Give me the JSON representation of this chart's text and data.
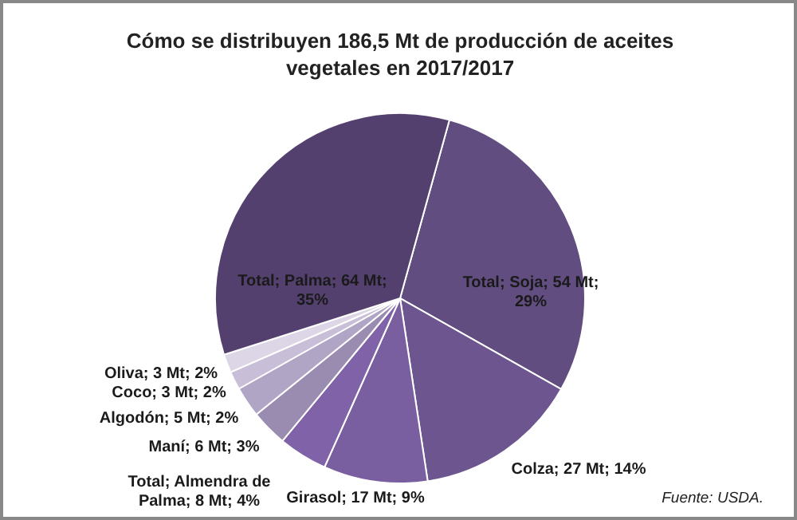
{
  "chart_data": {
    "type": "pie",
    "title": "Cómo se distribuyen 186,5 Mt de producción de aceites vegetales en 2017/2017",
    "categories": [
      "Total; Soja; 54 Mt; 29%",
      "Colza; 27 Mt; 14%",
      "Girasol; 17 Mt; 9%",
      "Total; Almendra de Palma; 8 Mt; 4%",
      "Maní; 6 Mt; 3%",
      "Algodón; 5 Mt; 2%",
      "Coco; 3 Mt; 2%",
      "Oliva; 3 Mt; 2%",
      "Total; Palma; 64 Mt; 35%"
    ],
    "values": [
      54,
      27,
      17,
      8,
      6,
      5,
      3,
      3,
      64
    ],
    "colors": [
      "#624d80",
      "#6d5590",
      "#7a5fa0",
      "#7f62a8",
      "#9a8bb0",
      "#b0a5c5",
      "#c8bed8",
      "#dcd6e6",
      "#54406e"
    ],
    "annotations": [
      "Fuente: USDA."
    ]
  }
}
